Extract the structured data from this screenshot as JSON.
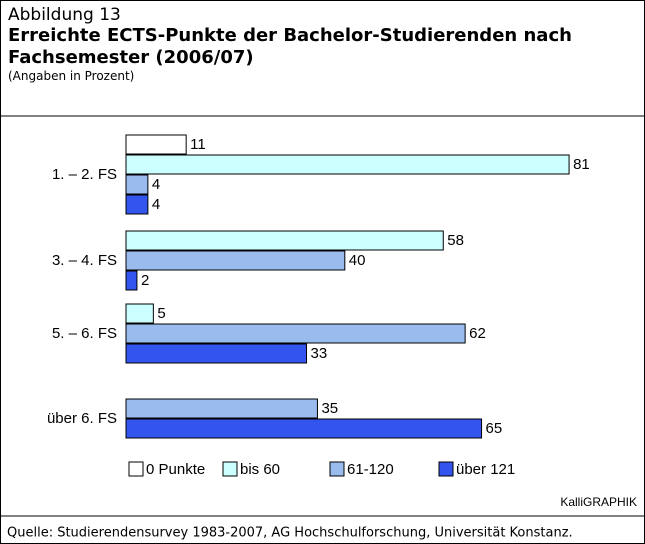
{
  "figure_label": "Abbildung 13",
  "credit": "KalliGRAPHIK",
  "source": "Quelle:  Studierendensurvey 1983-2007, AG Hochschulforschung, Universität Konstanz.",
  "chart_data": {
    "type": "hbar",
    "title": "Erreichte ECTS-Punkte der Bachelor-Studierenden nach Fach­semester (2006/07)",
    "subtitle": "(Angaben in Prozent)",
    "categories": [
      "1. – 2. FS",
      "3. – 4. FS",
      "5. – 6. FS",
      "über 6. FS"
    ],
    "series": [
      {
        "name": "0 Punkte",
        "color": "#ffffff",
        "values": [
          11,
          null,
          null,
          null
        ]
      },
      {
        "name": "bis 60",
        "color": "#ccffff",
        "values": [
          81,
          58,
          5,
          null
        ]
      },
      {
        "name": "61-120",
        "color": "#99bbee",
        "values": [
          4,
          40,
          62,
          35
        ]
      },
      {
        "name": "über 121",
        "color": "#3355ee",
        "values": [
          4,
          2,
          33,
          65
        ]
      }
    ]
  }
}
